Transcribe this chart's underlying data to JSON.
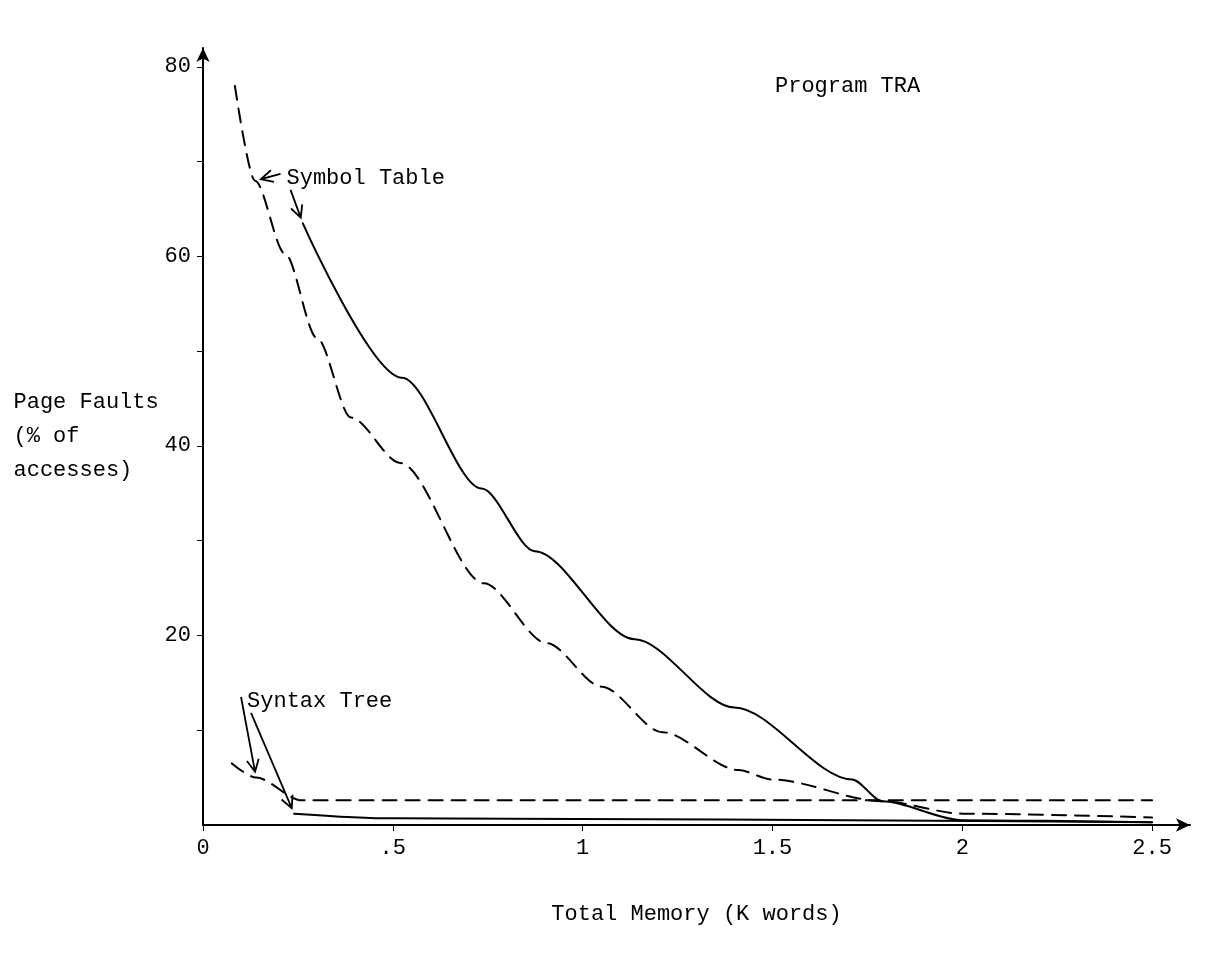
{
  "chart_data": {
    "type": "line",
    "title": "Program TRA",
    "xlabel": "Total Memory (K words)",
    "ylabel": "Page Faults\n(% of\naccesses)",
    "xlim": [
      0,
      2.6
    ],
    "ylim": [
      0,
      82
    ],
    "xticks": [
      0,
      {
        "value": 0.5,
        "label": ".5"
      },
      1,
      1.5,
      2,
      2.5
    ],
    "yticks": [
      {
        "value": 10,
        "label": null
      },
      20,
      {
        "value": 30,
        "label": null
      },
      40,
      {
        "value": 50,
        "label": null
      },
      60,
      {
        "value": 70,
        "label": null
      },
      80
    ],
    "marker": "none",
    "annotations": [
      "Symbol Table",
      "Syntax Tree"
    ],
    "series": [
      {
        "color": "#000000",
        "line_style": "dashed",
        "x": [
          0.084,
          0.137,
          0.216,
          0.3,
          0.39,
          0.52,
          0.74,
          0.905,
          1.05,
          1.21,
          1.41,
          1.5,
          1.79,
          2.0,
          2.5
        ],
        "values": [
          78,
          68,
          60.3,
          51.4,
          43,
          38.2,
          25.5,
          19.2,
          14.6,
          9.8,
          5.8,
          4.8,
          2.5,
          1.2,
          0.8
        ]
      },
      {
        "color": "#000000",
        "line_style": "solid",
        "x": [
          0.263,
          0.524,
          0.734,
          0.874,
          1.137,
          1.4,
          1.71,
          1.79,
          2.0,
          2.5
        ],
        "values": [
          63.5,
          47.2,
          35.5,
          28.9,
          19.6,
          12.4,
          4.8,
          2.5,
          0.5,
          0.3
        ]
      },
      {
        "color": "#000000",
        "line_style": "dashed",
        "x": [
          0.076,
          0.14,
          0.26,
          2.5
        ],
        "values": [
          6.5,
          5.0,
          2.6,
          2.6
        ]
      },
      {
        "color": "#000000",
        "line_style": "solid",
        "x": [
          0.24,
          0.5,
          2.5
        ],
        "values": [
          1.2,
          0.7,
          0.3
        ]
      }
    ]
  }
}
